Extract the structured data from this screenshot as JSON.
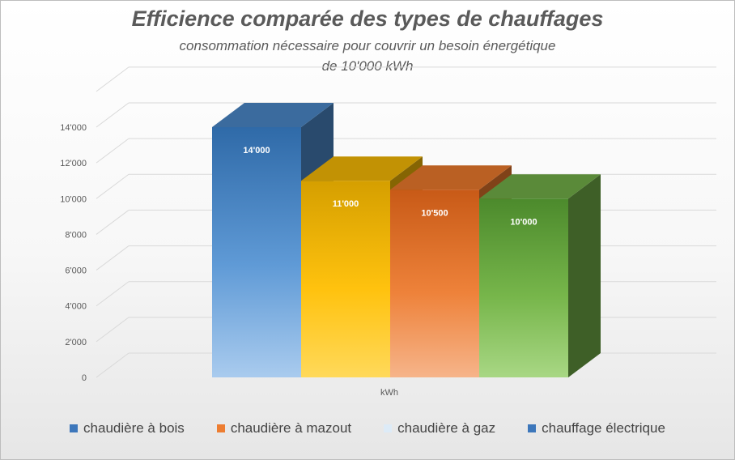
{
  "chart": {
    "title": "Efficience comparée des types de chauffages",
    "subtitle_line1": "consommation nécessaire pour couvrir un besoin énergétique",
    "subtitle_line2": "de 10'000 kWh"
  },
  "chart_data": {
    "type": "bar",
    "categories": [
      "kWh"
    ],
    "series": [
      {
        "name": "chaudière à bois",
        "value": 14000,
        "label": "14'000",
        "color": "#4a86c6"
      },
      {
        "name": "chaudière à mazout",
        "value": 11000,
        "label": "11'000",
        "color": "#f2b705"
      },
      {
        "name": "chaudière à gaz",
        "value": 10500,
        "label": "10'500",
        "color": "#e8782c"
      },
      {
        "name": "chauffage électrique",
        "value": 10000,
        "label": "10'000",
        "color": "#70ad47"
      }
    ],
    "y_ticks": [
      "0",
      "2'000",
      "4'000",
      "6'000",
      "8'000",
      "10'000",
      "12'000",
      "14'000"
    ],
    "xlabel": "kWh",
    "ylim": [
      0,
      16000
    ],
    "grid": true,
    "legend_position": "bottom",
    "legend_swatch_colors": [
      "#3d77bb",
      "#ed7d31",
      "#ddebf7",
      "#3d77bb"
    ]
  }
}
